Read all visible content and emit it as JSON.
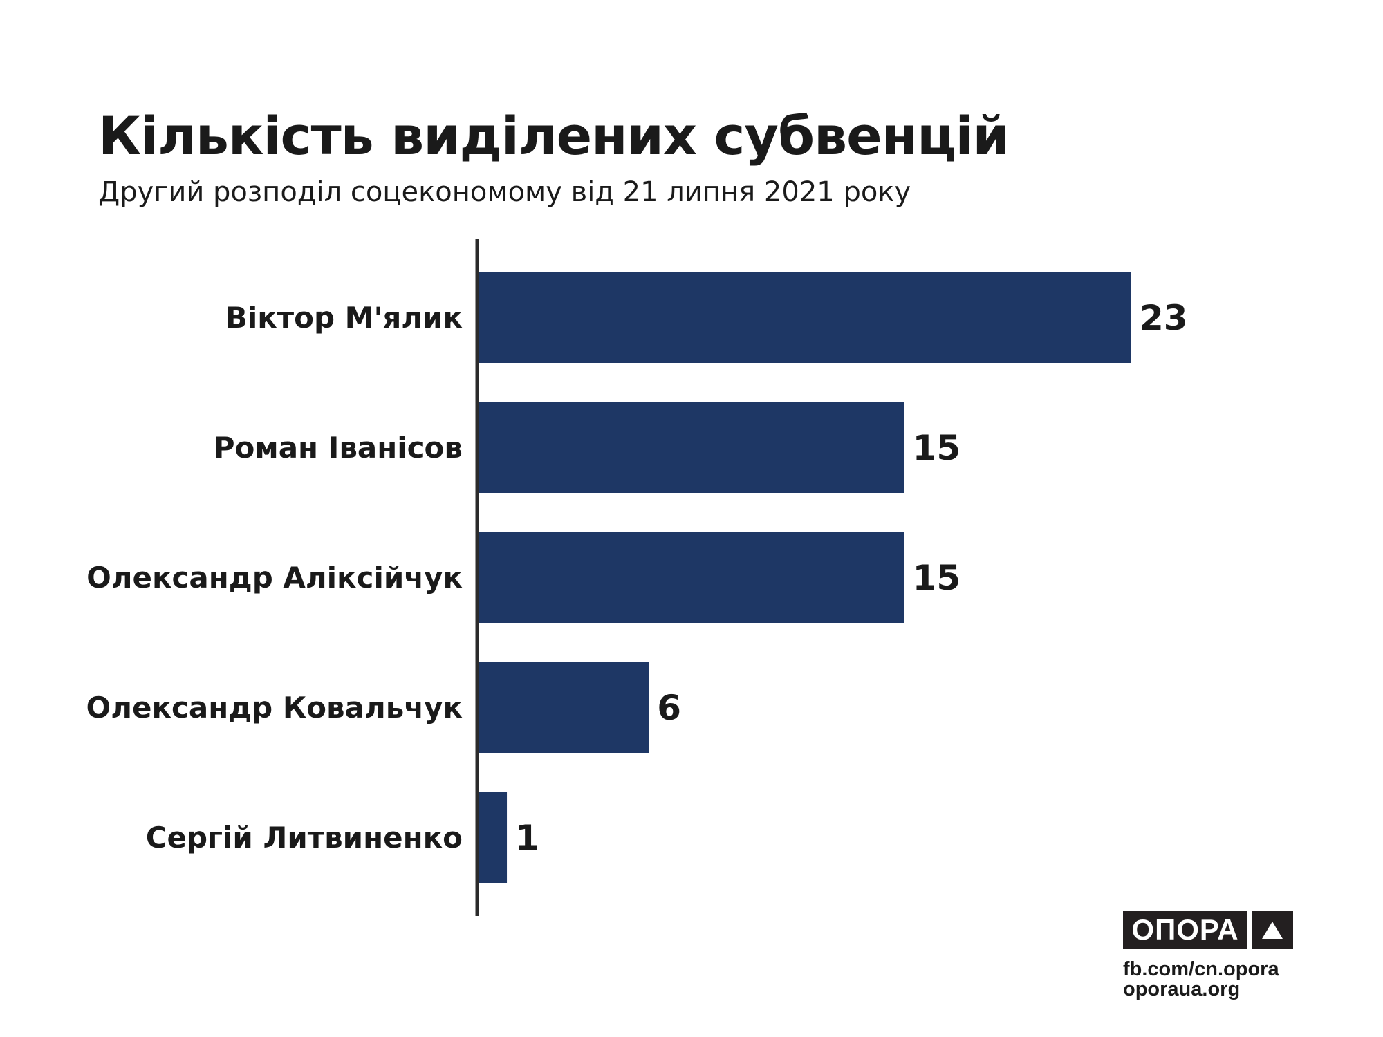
{
  "chart_data": {
    "type": "bar",
    "orientation": "horizontal",
    "title": "Кількість виділених субвенцій",
    "subtitle": "Другий розподіл соцекономому від 21 липня 2021 року",
    "categories": [
      "Віктор М'ялик",
      "Роман Іванісов",
      "Олександр Аліксійчук",
      "Олександр Ковальчук",
      "Сергій Литвиненко"
    ],
    "values": [
      23,
      15,
      15,
      6,
      1
    ],
    "data_labels": [
      "23",
      "15",
      "15",
      "6",
      "1"
    ],
    "xlabel": "",
    "ylabel": "",
    "xlim": [
      0,
      23
    ],
    "grid": false,
    "bar_color": "#1e3765"
  },
  "branding": {
    "logo_text": "ОПОРА",
    "links": [
      "fb.com/cn.opora",
      "oporaua.org"
    ]
  }
}
